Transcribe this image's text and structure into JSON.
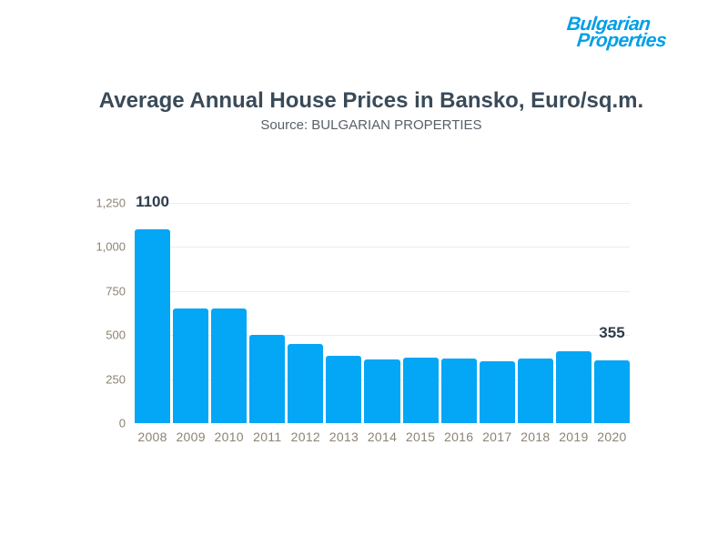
{
  "logo": {
    "line1": "Bulgarian",
    "line2": "Properties"
  },
  "colors": {
    "brand_blue": "#009FE6",
    "bar_blue": "#04A6F6",
    "title": "#3A4A58",
    "subtitle": "#585F66",
    "axis_label": "#8C8374",
    "data_label": "#2E3C4D",
    "gridline": "#ECECEC"
  },
  "chart_data": {
    "type": "bar",
    "title": "Average Annual House Prices in Bansko, Euro/sq.m.",
    "subtitle": "Source: BULGARIAN PROPERTIES",
    "xlabel": "",
    "ylabel": "",
    "categories": [
      "2008",
      "2009",
      "2010",
      "2011",
      "2012",
      "2013",
      "2014",
      "2015",
      "2016",
      "2017",
      "2018",
      "2019",
      "2020"
    ],
    "values": [
      1100,
      650,
      650,
      500,
      450,
      380,
      360,
      370,
      365,
      350,
      365,
      410,
      355
    ],
    "annotations": [
      {
        "category": "2008",
        "text": "1100"
      },
      {
        "category": "2020",
        "text": "355"
      }
    ],
    "ylim": [
      0,
      1250
    ],
    "yticks": [
      {
        "label": "0",
        "value": 0
      },
      {
        "label": "250",
        "value": 250
      },
      {
        "label": "500",
        "value": 500
      },
      {
        "label": "750",
        "value": 750
      },
      {
        "label": "1,000",
        "value": 1000
      },
      {
        "label": "1,250",
        "value": 1250
      }
    ],
    "grid": true,
    "legend": false
  }
}
